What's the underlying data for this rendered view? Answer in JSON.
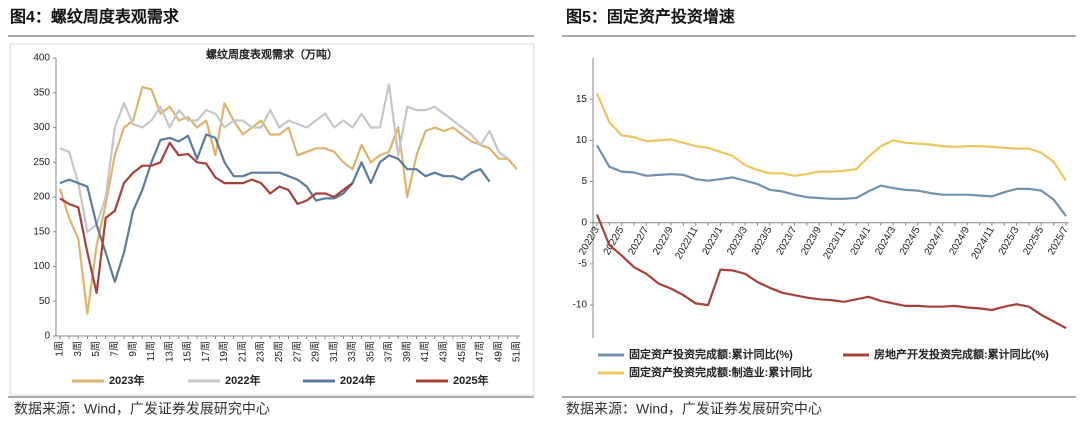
{
  "headers": [
    "图4：螺纹周度表观需求",
    "图5：固定资产投资增速"
  ],
  "sources": [
    "数据来源：Wind，广发证券发展研究中心",
    "数据来源：Wind，广发证券发展研究中心"
  ],
  "chart_data": [
    {
      "type": "line",
      "title": "螺纹周度表观需求（万吨）",
      "categories": [
        "1周",
        null,
        "3周",
        null,
        "5周",
        null,
        "7周",
        null,
        "9周",
        null,
        "11周",
        null,
        "13周",
        null,
        "15周",
        null,
        "17周",
        null,
        "19周",
        null,
        "21周",
        null,
        "23周",
        null,
        "25周",
        null,
        "27周",
        null,
        "29周",
        null,
        "31周",
        null,
        "33周",
        null,
        "35周",
        null,
        "37周",
        null,
        "39周",
        null,
        "41周",
        null,
        "43周",
        null,
        "45周",
        null,
        "47周",
        null,
        "49周",
        null,
        "51周"
      ],
      "ylim": [
        0,
        400
      ],
      "yticks": [
        0,
        50,
        100,
        150,
        200,
        250,
        300,
        350,
        400
      ],
      "series": [
        {
          "name": "2023年",
          "color": "#ddb46e",
          "values": [
            212,
            170,
            140,
            32,
            130,
            190,
            260,
            300,
            310,
            358,
            355,
            320,
            330,
            310,
            315,
            300,
            310,
            260,
            335,
            310,
            290,
            300,
            310,
            290,
            290,
            300,
            260,
            265,
            270,
            270,
            265,
            250,
            240,
            275,
            250,
            260,
            265,
            300,
            200,
            260,
            295,
            300,
            295,
            300,
            290,
            280,
            275,
            270,
            255,
            255,
            240
          ]
        },
        {
          "name": "2022年",
          "color": "#c6c6c6",
          "values": [
            270,
            265,
            220,
            150,
            160,
            200,
            300,
            335,
            305,
            300,
            310,
            330,
            300,
            325,
            310,
            310,
            325,
            320,
            300,
            310,
            310,
            300,
            300,
            325,
            300,
            310,
            305,
            300,
            310,
            320,
            300,
            310,
            300,
            320,
            300,
            300,
            362,
            260,
            330,
            325,
            325,
            330,
            320,
            310,
            300,
            290,
            275,
            295,
            265,
            255,
            null
          ]
        },
        {
          "name": "2024年",
          "color": "#5a7b9c",
          "values": [
            220,
            225,
            220,
            215,
            160,
            120,
            78,
            120,
            180,
            210,
            250,
            282,
            285,
            280,
            288,
            255,
            290,
            285,
            250,
            230,
            230,
            235,
            235,
            235,
            235,
            230,
            225,
            215,
            195,
            198,
            198,
            205,
            220,
            250,
            220,
            250,
            260,
            255,
            240,
            240,
            230,
            235,
            230,
            230,
            225,
            235,
            240,
            222,
            null,
            null,
            null
          ]
        },
        {
          "name": "2025年",
          "color": "#a5403a",
          "values": [
            198,
            190,
            185,
            120,
            62,
            170,
            180,
            220,
            235,
            245,
            245,
            250,
            278,
            260,
            262,
            250,
            248,
            228,
            220,
            220,
            220,
            225,
            220,
            205,
            215,
            210,
            190,
            195,
            205,
            205,
            200,
            210,
            220,
            null,
            null,
            null,
            null,
            null,
            null,
            null,
            null,
            null,
            null,
            null,
            null,
            null,
            null,
            null,
            null,
            null,
            null
          ]
        }
      ]
    },
    {
      "type": "line",
      "categories": [
        "2022/3",
        null,
        "2022/5",
        null,
        "2022/7",
        null,
        "2022/9",
        null,
        "2022/11",
        null,
        "2023/1",
        null,
        "2023/3",
        null,
        "2023/5",
        null,
        "2023/7",
        null,
        "2023/9",
        null,
        "2023/11",
        null,
        "2024/1",
        null,
        "2024/3",
        null,
        "2024/5",
        null,
        "2024/7",
        null,
        "2024/9",
        null,
        "2024/11",
        null,
        "2025/3",
        null,
        "2025/5",
        null,
        "2025/7"
      ],
      "ylim": [
        -14,
        20
      ],
      "yticks": [
        -10,
        -5,
        0,
        5,
        10,
        15
      ],
      "series": [
        {
          "name": "固定资产投资完成额:累计同比(%)",
          "color": "#7390ad",
          "values": [
            9.4,
            6.8,
            6.2,
            6.1,
            5.7,
            5.8,
            5.9,
            5.8,
            5.3,
            5.1,
            5.3,
            5.5,
            5.1,
            4.7,
            4.0,
            3.8,
            3.4,
            3.1,
            3.0,
            2.9,
            2.9,
            3.0,
            3.8,
            4.5,
            4.2,
            4.0,
            3.9,
            3.6,
            3.4,
            3.4,
            3.4,
            3.3,
            3.2,
            3.7,
            4.1,
            4.1,
            3.9,
            2.8,
            0.8
          ]
        },
        {
          "name": "房地产开发投资完成额:累计同比(%)",
          "color": "#a5403a",
          "values": [
            1.0,
            -2.7,
            -4.0,
            -5.4,
            -6.2,
            -7.4,
            -8.0,
            -8.8,
            -9.8,
            -10.0,
            -5.7,
            -5.8,
            -6.2,
            -7.2,
            -7.9,
            -8.5,
            -8.8,
            -9.1,
            -9.3,
            -9.4,
            -9.6,
            -9.3,
            -9.0,
            -9.5,
            -9.8,
            -10.1,
            -10.1,
            -10.2,
            -10.2,
            -10.1,
            -10.3,
            -10.4,
            -10.6,
            -10.2,
            -9.9,
            -10.2,
            -11.2,
            -12.0,
            -12.8
          ]
        },
        {
          "name": "固定资产投资完成额:制造业:累计同比",
          "color": "#ecc85c",
          "values": [
            15.7,
            12.2,
            10.6,
            10.4,
            9.9,
            10.0,
            10.1,
            9.7,
            9.3,
            9.1,
            8.6,
            8.1,
            7.0,
            6.4,
            6.0,
            6.0,
            5.7,
            5.9,
            6.2,
            6.2,
            6.3,
            6.5,
            8.0,
            9.3,
            10.0,
            9.7,
            9.6,
            9.5,
            9.3,
            9.2,
            9.3,
            9.3,
            9.2,
            9.1,
            9.0,
            9.0,
            8.5,
            7.4,
            5.1
          ]
        }
      ]
    }
  ]
}
